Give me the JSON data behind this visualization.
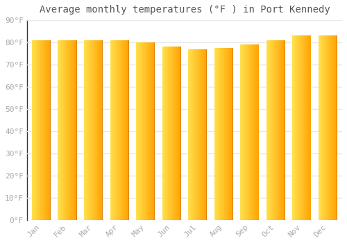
{
  "title": "Average monthly temperatures (°F ) in Port Kennedy",
  "months": [
    "Jan",
    "Feb",
    "Mar",
    "Apr",
    "May",
    "Jun",
    "Jul",
    "Aug",
    "Sep",
    "Oct",
    "Nov",
    "Dec"
  ],
  "values": [
    81,
    81,
    81,
    81,
    80,
    78,
    77,
    77.5,
    79,
    81,
    83,
    83
  ],
  "ylim": [
    0,
    90
  ],
  "yticks": [
    0,
    10,
    20,
    30,
    40,
    50,
    60,
    70,
    80,
    90
  ],
  "ytick_labels": [
    "0°F",
    "10°F",
    "20°F",
    "30°F",
    "40°F",
    "50°F",
    "60°F",
    "70°F",
    "80°F",
    "90°F"
  ],
  "bar_color_left": "#FFE066",
  "bar_color_right": "#FFA000",
  "bar_edge_color": "#E08000",
  "background_color": "#ffffff",
  "grid_color": "#e8e8e8",
  "title_fontsize": 10,
  "tick_fontsize": 8,
  "font_family": "monospace",
  "title_color": "#555555",
  "tick_color": "#aaaaaa"
}
